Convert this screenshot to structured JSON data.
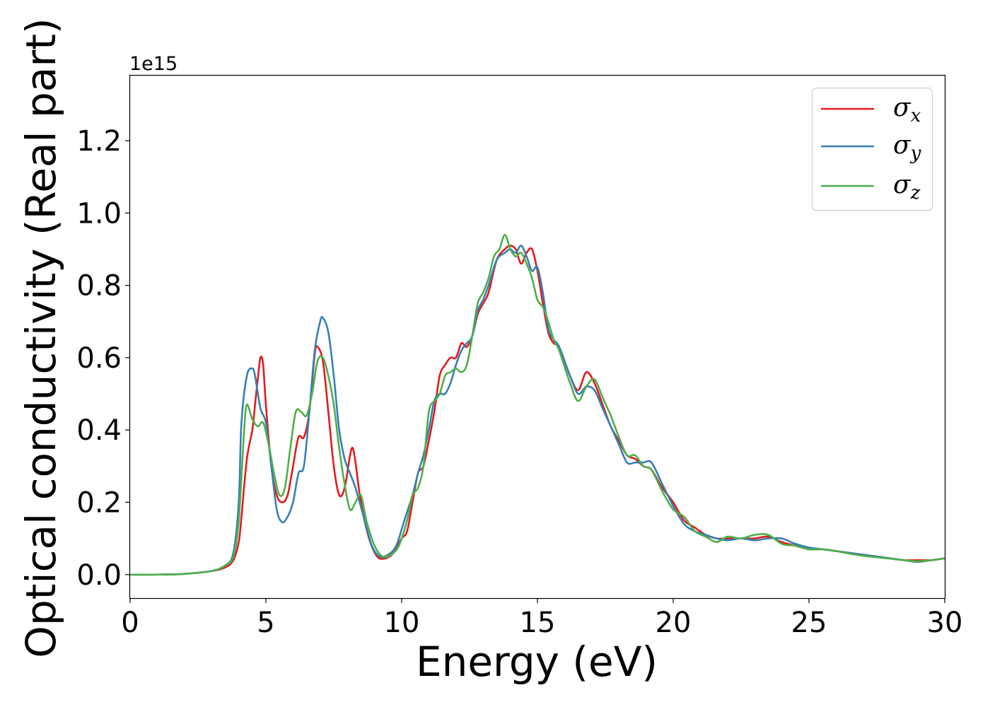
{
  "chart_data": {
    "type": "line",
    "xlabel": "Energy (eV)",
    "ylabel": "Optical conductivity (Real part)",
    "y_offset_label": "1e15",
    "y_multiplier": 1000000000000000.0,
    "xlim": [
      0,
      30
    ],
    "ylim": [
      -0.065,
      1.38
    ],
    "xticks": [
      0,
      5,
      10,
      15,
      20,
      25,
      30
    ],
    "yticks": [
      0.0,
      0.2,
      0.4,
      0.6,
      0.8,
      1.0,
      1.2
    ],
    "ytick_labels": [
      "0.0",
      "0.2",
      "0.4",
      "0.6",
      "0.8",
      "1.0",
      "1.2"
    ],
    "grid": false,
    "legend_position": "top-right",
    "series": [
      {
        "name": "σx",
        "legend_symbol": "σ",
        "legend_subscript": "x",
        "color": "#e41a1c",
        "points": [
          [
            0,
            0
          ],
          [
            1,
            0
          ],
          [
            2,
            0.002
          ],
          [
            3,
            0.01
          ],
          [
            3.5,
            0.02
          ],
          [
            3.8,
            0.04
          ],
          [
            4.0,
            0.09
          ],
          [
            4.1,
            0.16
          ],
          [
            4.3,
            0.32
          ],
          [
            4.5,
            0.4
          ],
          [
            4.6,
            0.47
          ],
          [
            4.7,
            0.54
          ],
          [
            4.8,
            0.6
          ],
          [
            4.9,
            0.58
          ],
          [
            5.0,
            0.47
          ],
          [
            5.2,
            0.3
          ],
          [
            5.4,
            0.22
          ],
          [
            5.6,
            0.2
          ],
          [
            5.8,
            0.22
          ],
          [
            6.0,
            0.3
          ],
          [
            6.2,
            0.38
          ],
          [
            6.4,
            0.38
          ],
          [
            6.6,
            0.45
          ],
          [
            6.8,
            0.61
          ],
          [
            6.9,
            0.63
          ],
          [
            7.1,
            0.59
          ],
          [
            7.3,
            0.45
          ],
          [
            7.5,
            0.3
          ],
          [
            7.7,
            0.22
          ],
          [
            7.9,
            0.24
          ],
          [
            8.1,
            0.33
          ],
          [
            8.2,
            0.35
          ],
          [
            8.3,
            0.31
          ],
          [
            8.5,
            0.2
          ],
          [
            8.8,
            0.1
          ],
          [
            9.1,
            0.05
          ],
          [
            9.4,
            0.045
          ],
          [
            9.7,
            0.06
          ],
          [
            10.0,
            0.1
          ],
          [
            10.2,
            0.12
          ],
          [
            10.4,
            0.2
          ],
          [
            10.6,
            0.28
          ],
          [
            10.8,
            0.3
          ],
          [
            11.0,
            0.37
          ],
          [
            11.2,
            0.45
          ],
          [
            11.4,
            0.55
          ],
          [
            11.6,
            0.58
          ],
          [
            11.8,
            0.6
          ],
          [
            12.0,
            0.6
          ],
          [
            12.2,
            0.64
          ],
          [
            12.4,
            0.63
          ],
          [
            12.6,
            0.66
          ],
          [
            12.8,
            0.72
          ],
          [
            13.0,
            0.75
          ],
          [
            13.2,
            0.78
          ],
          [
            13.5,
            0.87
          ],
          [
            13.8,
            0.9
          ],
          [
            14.0,
            0.91
          ],
          [
            14.2,
            0.9
          ],
          [
            14.4,
            0.86
          ],
          [
            14.6,
            0.89
          ],
          [
            14.8,
            0.9
          ],
          [
            15.0,
            0.84
          ],
          [
            15.2,
            0.75
          ],
          [
            15.4,
            0.67
          ],
          [
            15.6,
            0.64
          ],
          [
            15.8,
            0.63
          ],
          [
            16.2,
            0.55
          ],
          [
            16.5,
            0.51
          ],
          [
            16.8,
            0.56
          ],
          [
            17.1,
            0.53
          ],
          [
            17.4,
            0.47
          ],
          [
            17.7,
            0.41
          ],
          [
            18.0,
            0.37
          ],
          [
            18.3,
            0.33
          ],
          [
            18.6,
            0.32
          ],
          [
            18.9,
            0.3
          ],
          [
            19.2,
            0.29
          ],
          [
            19.6,
            0.24
          ],
          [
            20.0,
            0.2
          ],
          [
            20.4,
            0.15
          ],
          [
            20.8,
            0.13
          ],
          [
            21.2,
            0.11
          ],
          [
            21.6,
            0.1
          ],
          [
            22.0,
            0.1
          ],
          [
            22.5,
            0.1
          ],
          [
            23.0,
            0.1
          ],
          [
            23.5,
            0.105
          ],
          [
            24.0,
            0.09
          ],
          [
            24.5,
            0.08
          ],
          [
            25.0,
            0.07
          ],
          [
            25.5,
            0.07
          ],
          [
            26.0,
            0.065
          ],
          [
            26.5,
            0.06
          ],
          [
            27.0,
            0.055
          ],
          [
            27.5,
            0.05
          ],
          [
            28.0,
            0.045
          ],
          [
            28.5,
            0.04
          ],
          [
            29.0,
            0.04
          ],
          [
            29.5,
            0.04
          ],
          [
            30.0,
            0.045
          ]
        ]
      },
      {
        "name": "σy",
        "legend_symbol": "σ",
        "legend_subscript": "y",
        "color": "#377eb8",
        "points": [
          [
            0,
            0
          ],
          [
            1,
            0
          ],
          [
            2,
            0.002
          ],
          [
            3,
            0.01
          ],
          [
            3.5,
            0.025
          ],
          [
            3.8,
            0.06
          ],
          [
            4.0,
            0.2
          ],
          [
            4.1,
            0.42
          ],
          [
            4.3,
            0.55
          ],
          [
            4.5,
            0.57
          ],
          [
            4.6,
            0.55
          ],
          [
            4.8,
            0.46
          ],
          [
            5.0,
            0.42
          ],
          [
            5.2,
            0.3
          ],
          [
            5.4,
            0.18
          ],
          [
            5.6,
            0.145
          ],
          [
            5.8,
            0.16
          ],
          [
            6.0,
            0.2
          ],
          [
            6.2,
            0.28
          ],
          [
            6.4,
            0.3
          ],
          [
            6.6,
            0.45
          ],
          [
            6.8,
            0.62
          ],
          [
            7.0,
            0.7
          ],
          [
            7.1,
            0.71
          ],
          [
            7.3,
            0.67
          ],
          [
            7.5,
            0.55
          ],
          [
            7.7,
            0.4
          ],
          [
            7.9,
            0.32
          ],
          [
            8.1,
            0.28
          ],
          [
            8.3,
            0.24
          ],
          [
            8.6,
            0.16
          ],
          [
            8.9,
            0.08
          ],
          [
            9.2,
            0.05
          ],
          [
            9.5,
            0.055
          ],
          [
            9.8,
            0.08
          ],
          [
            10.1,
            0.15
          ],
          [
            10.4,
            0.22
          ],
          [
            10.6,
            0.28
          ],
          [
            10.8,
            0.33
          ],
          [
            11.0,
            0.4
          ],
          [
            11.2,
            0.48
          ],
          [
            11.4,
            0.5
          ],
          [
            11.6,
            0.5
          ],
          [
            11.8,
            0.53
          ],
          [
            12.0,
            0.58
          ],
          [
            12.2,
            0.62
          ],
          [
            12.4,
            0.64
          ],
          [
            12.6,
            0.66
          ],
          [
            12.8,
            0.73
          ],
          [
            13.0,
            0.76
          ],
          [
            13.2,
            0.8
          ],
          [
            13.5,
            0.87
          ],
          [
            13.8,
            0.89
          ],
          [
            14.0,
            0.9
          ],
          [
            14.2,
            0.89
          ],
          [
            14.4,
            0.91
          ],
          [
            14.6,
            0.88
          ],
          [
            14.8,
            0.84
          ],
          [
            15.0,
            0.85
          ],
          [
            15.2,
            0.78
          ],
          [
            15.4,
            0.68
          ],
          [
            15.6,
            0.65
          ],
          [
            15.8,
            0.63
          ],
          [
            16.2,
            0.55
          ],
          [
            16.5,
            0.5
          ],
          [
            16.8,
            0.52
          ],
          [
            17.1,
            0.51
          ],
          [
            17.4,
            0.46
          ],
          [
            17.7,
            0.41
          ],
          [
            18.0,
            0.36
          ],
          [
            18.3,
            0.31
          ],
          [
            18.6,
            0.31
          ],
          [
            18.9,
            0.31
          ],
          [
            19.2,
            0.31
          ],
          [
            19.6,
            0.25
          ],
          [
            20.0,
            0.19
          ],
          [
            20.4,
            0.14
          ],
          [
            20.8,
            0.12
          ],
          [
            21.2,
            0.11
          ],
          [
            21.6,
            0.1
          ],
          [
            22.0,
            0.095
          ],
          [
            22.5,
            0.1
          ],
          [
            23.0,
            0.095
          ],
          [
            23.5,
            0.1
          ],
          [
            24.0,
            0.1
          ],
          [
            24.5,
            0.085
          ],
          [
            25.0,
            0.075
          ],
          [
            25.5,
            0.07
          ],
          [
            26.0,
            0.065
          ],
          [
            26.5,
            0.06
          ],
          [
            27.0,
            0.055
          ],
          [
            27.5,
            0.05
          ],
          [
            28.0,
            0.045
          ],
          [
            28.5,
            0.04
          ],
          [
            29.0,
            0.035
          ],
          [
            29.5,
            0.04
          ],
          [
            30.0,
            0.045
          ]
        ]
      },
      {
        "name": "σz",
        "legend_symbol": "σ",
        "legend_subscript": "z",
        "color": "#4daf4a",
        "points": [
          [
            0,
            0
          ],
          [
            1,
            0
          ],
          [
            2,
            0.002
          ],
          [
            3,
            0.01
          ],
          [
            3.5,
            0.025
          ],
          [
            3.8,
            0.05
          ],
          [
            4.0,
            0.15
          ],
          [
            4.2,
            0.4
          ],
          [
            4.3,
            0.47
          ],
          [
            4.5,
            0.43
          ],
          [
            4.7,
            0.41
          ],
          [
            4.9,
            0.42
          ],
          [
            5.1,
            0.36
          ],
          [
            5.3,
            0.28
          ],
          [
            5.5,
            0.22
          ],
          [
            5.7,
            0.24
          ],
          [
            5.9,
            0.35
          ],
          [
            6.1,
            0.45
          ],
          [
            6.3,
            0.45
          ],
          [
            6.5,
            0.44
          ],
          [
            6.7,
            0.5
          ],
          [
            6.9,
            0.59
          ],
          [
            7.1,
            0.6
          ],
          [
            7.3,
            0.55
          ],
          [
            7.5,
            0.47
          ],
          [
            7.7,
            0.35
          ],
          [
            7.9,
            0.25
          ],
          [
            8.1,
            0.18
          ],
          [
            8.3,
            0.2
          ],
          [
            8.5,
            0.22
          ],
          [
            8.7,
            0.15
          ],
          [
            9.0,
            0.08
          ],
          [
            9.3,
            0.05
          ],
          [
            9.6,
            0.055
          ],
          [
            9.9,
            0.08
          ],
          [
            10.2,
            0.15
          ],
          [
            10.4,
            0.22
          ],
          [
            10.6,
            0.24
          ],
          [
            10.8,
            0.3
          ],
          [
            11.0,
            0.45
          ],
          [
            11.2,
            0.48
          ],
          [
            11.4,
            0.5
          ],
          [
            11.6,
            0.55
          ],
          [
            11.8,
            0.56
          ],
          [
            12.0,
            0.57
          ],
          [
            12.2,
            0.56
          ],
          [
            12.4,
            0.58
          ],
          [
            12.6,
            0.66
          ],
          [
            12.8,
            0.75
          ],
          [
            13.0,
            0.78
          ],
          [
            13.2,
            0.82
          ],
          [
            13.4,
            0.88
          ],
          [
            13.6,
            0.9
          ],
          [
            13.8,
            0.94
          ],
          [
            14.0,
            0.9
          ],
          [
            14.2,
            0.88
          ],
          [
            14.4,
            0.89
          ],
          [
            14.6,
            0.86
          ],
          [
            14.8,
            0.82
          ],
          [
            15.0,
            0.76
          ],
          [
            15.2,
            0.74
          ],
          [
            15.4,
            0.7
          ],
          [
            15.6,
            0.65
          ],
          [
            15.8,
            0.62
          ],
          [
            16.2,
            0.53
          ],
          [
            16.5,
            0.48
          ],
          [
            16.8,
            0.52
          ],
          [
            17.1,
            0.54
          ],
          [
            17.4,
            0.49
          ],
          [
            17.7,
            0.44
          ],
          [
            18.0,
            0.38
          ],
          [
            18.3,
            0.33
          ],
          [
            18.6,
            0.33
          ],
          [
            18.9,
            0.3
          ],
          [
            19.2,
            0.29
          ],
          [
            19.6,
            0.23
          ],
          [
            20.0,
            0.18
          ],
          [
            20.4,
            0.16
          ],
          [
            20.8,
            0.12
          ],
          [
            21.2,
            0.105
          ],
          [
            21.6,
            0.09
          ],
          [
            22.0,
            0.105
          ],
          [
            22.5,
            0.1
          ],
          [
            23.0,
            0.11
          ],
          [
            23.5,
            0.11
          ],
          [
            24.0,
            0.085
          ],
          [
            24.5,
            0.08
          ],
          [
            25.0,
            0.07
          ],
          [
            25.5,
            0.07
          ],
          [
            26.0,
            0.065
          ],
          [
            26.5,
            0.058
          ],
          [
            27.0,
            0.052
          ],
          [
            27.5,
            0.048
          ],
          [
            28.0,
            0.044
          ],
          [
            28.5,
            0.04
          ],
          [
            29.0,
            0.037
          ],
          [
            29.5,
            0.04
          ],
          [
            30.0,
            0.045
          ]
        ]
      }
    ]
  }
}
